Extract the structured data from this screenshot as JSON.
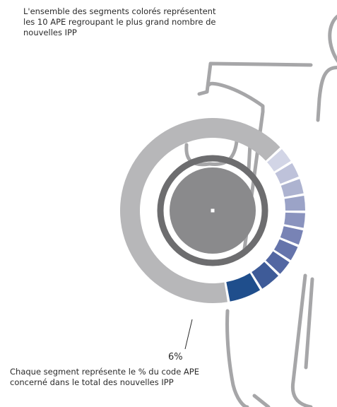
{
  "captions": {
    "top": [
      "L'ensemble des segments colorés représentent",
      "les 10 APE regroupant le plus grand nombre de",
      "nouvelles IPP"
    ],
    "bottom": [
      "Chaque segment représente le % du code APE",
      "concerné dans  le total des nouvelles IPP"
    ]
  },
  "highlight_value": "6%",
  "chart_data": {
    "type": "donut",
    "segments": [
      {
        "value": 6,
        "color": "#1f4e8c"
      },
      {
        "value": 4,
        "color": "#3e5b98"
      },
      {
        "value": 3,
        "color": "#5367a2"
      },
      {
        "value": 3,
        "color": "#6574ab"
      },
      {
        "value": 3,
        "color": "#7883b5"
      },
      {
        "value": 3,
        "color": "#8a93be"
      },
      {
        "value": 3,
        "color": "#9ba3c7"
      },
      {
        "value": 3,
        "color": "#adb3d0"
      },
      {
        "value": 3,
        "color": "#bec2da"
      },
      {
        "value": 3,
        "color": "#d2d5e6"
      }
    ],
    "remainder_color": "#b7b7b9",
    "inner_ring_color": "#6d6d6f",
    "inner_disc_color": "#8a8a8c",
    "silhouette_color": "#a6a6a8"
  }
}
